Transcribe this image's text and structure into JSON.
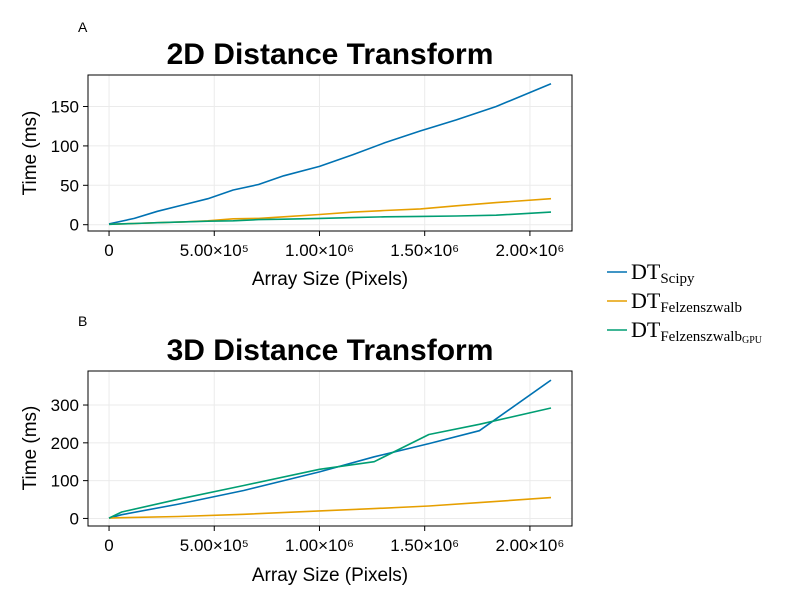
{
  "legend": {
    "items": [
      {
        "name": "DT",
        "sub": "Scipy",
        "subsub": "",
        "color": "#0072b2"
      },
      {
        "name": "DT",
        "sub": "Felzenszwalb",
        "subsub": "",
        "color": "#e69f00"
      },
      {
        "name": "DT",
        "sub": "Felzenszwalb",
        "subsub": "GPU",
        "color": "#009e73"
      }
    ]
  },
  "chart_data": [
    {
      "type": "line",
      "panel": "A",
      "title": "2D Distance Transform",
      "xlabel": "Array Size (Pixels)",
      "ylabel": "Time (ms)",
      "xlim": [
        -100000,
        2200000
      ],
      "ylim": [
        -8,
        190
      ],
      "xticks": [
        0,
        500000,
        1000000,
        1500000,
        2000000
      ],
      "xtick_labels": [
        "0",
        "5.00×10⁵",
        "1.00×10⁶",
        "1.50×10⁶",
        "2.00×10⁶"
      ],
      "yticks": [
        0,
        50,
        100,
        150
      ],
      "ytick_labels": [
        "0",
        "50",
        "100",
        "150"
      ],
      "grid": true,
      "x": [
        0,
        120000,
        230000,
        350000,
        470000,
        590000,
        710000,
        830000,
        1000000,
        1160000,
        1310000,
        1480000,
        1650000,
        1840000,
        2100000
      ],
      "series": [
        {
          "name": "Scipy",
          "color": "#0072b2",
          "values": [
            1,
            8,
            17,
            25,
            33,
            44,
            51,
            62,
            74,
            89,
            104,
            119,
            133,
            150,
            179
          ]
        },
        {
          "name": "Felzenszwalb",
          "color": "#e69f00",
          "values": [
            0.5,
            1.5,
            2.5,
            3.5,
            5,
            7.5,
            8,
            10,
            13,
            16,
            18,
            20,
            24,
            28,
            33
          ]
        },
        {
          "name": "FelzenszwalbGPU",
          "color": "#009e73",
          "values": [
            0.5,
            1.5,
            2.5,
            3.5,
            4.5,
            5,
            6.5,
            7,
            8,
            9,
            10,
            10.5,
            11,
            12,
            16
          ]
        }
      ]
    },
    {
      "type": "line",
      "panel": "B",
      "title": "3D Distance Transform",
      "xlabel": "Array Size (Pixels)",
      "ylabel": "Time (ms)",
      "xlim": [
        -100000,
        2200000
      ],
      "ylim": [
        -20,
        390
      ],
      "xticks": [
        0,
        500000,
        1000000,
        1500000,
        2000000
      ],
      "xtick_labels": [
        "0",
        "5.00×10⁵",
        "1.00×10⁶",
        "1.50×10⁶",
        "2.00×10⁶"
      ],
      "yticks": [
        0,
        100,
        200,
        300
      ],
      "ytick_labels": [
        "0",
        "100",
        "200",
        "300"
      ],
      "grid": true,
      "x": [
        0,
        60000,
        330000,
        640000,
        1000000,
        1260000,
        1520000,
        1760000,
        2100000
      ],
      "series": [
        {
          "name": "Scipy",
          "color": "#0072b2",
          "values": [
            1,
            10,
            38,
            74,
            123,
            163,
            198,
            232,
            366
          ]
        },
        {
          "name": "Felzenszwalb",
          "color": "#e69f00",
          "values": [
            1,
            2,
            5,
            11,
            20,
            26,
            33,
            42,
            55
          ]
        },
        {
          "name": "FelzenszwalbGPU",
          "color": "#009e73",
          "values": [
            1,
            17,
            51,
            87,
            130,
            150,
            222,
            249,
            292
          ]
        }
      ]
    }
  ]
}
